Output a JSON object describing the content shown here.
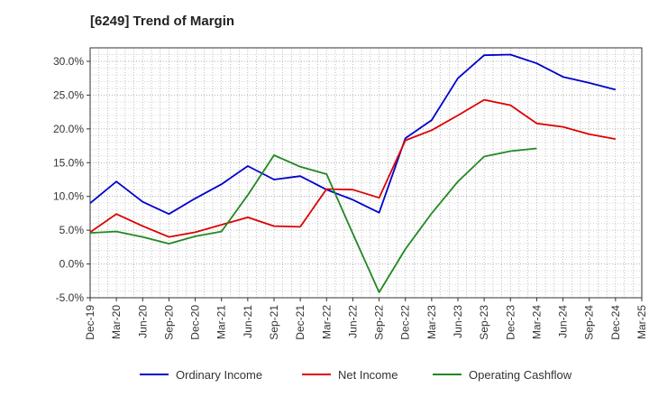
{
  "chart_data": {
    "type": "line",
    "title": "[6249]  Trend of Margin",
    "xlabel": "",
    "ylabel": "",
    "ylim": [
      -5,
      32
    ],
    "y_ticks": [
      "-5.0%",
      "0.0%",
      "5.0%",
      "10.0%",
      "15.0%",
      "20.0%",
      "25.0%",
      "30.0%"
    ],
    "y_tick_values": [
      -5,
      0,
      5,
      10,
      15,
      20,
      25,
      30
    ],
    "categories": [
      "Dec-19",
      "Mar-20",
      "Jun-20",
      "Sep-20",
      "Dec-20",
      "Mar-21",
      "Jun-21",
      "Sep-21",
      "Dec-21",
      "Mar-22",
      "Jun-22",
      "Sep-22",
      "Dec-22",
      "Mar-23",
      "Jun-23",
      "Sep-23",
      "Dec-23",
      "Mar-24",
      "Jun-24",
      "Sep-24",
      "Dec-24",
      "Mar-25"
    ],
    "grid": true,
    "legend_position": "bottom",
    "series": [
      {
        "name": "Ordinary Income",
        "color": "#0000cc",
        "values": [
          9.0,
          12.2,
          9.2,
          7.4,
          9.7,
          11.8,
          14.5,
          12.5,
          13.0,
          11.0,
          9.5,
          7.6,
          18.6,
          21.3,
          27.5,
          30.9,
          31.0,
          29.7,
          27.7,
          26.8,
          25.8,
          null
        ]
      },
      {
        "name": "Net Income",
        "color": "#dd0000",
        "values": [
          4.7,
          7.4,
          5.6,
          4.0,
          4.7,
          5.8,
          6.9,
          5.6,
          5.5,
          11.1,
          11.0,
          9.8,
          18.3,
          19.8,
          22.0,
          24.3,
          23.5,
          20.8,
          20.3,
          19.2,
          18.5,
          null
        ]
      },
      {
        "name": "Operating Cashflow",
        "color": "#228822",
        "values": [
          4.6,
          4.8,
          4.0,
          3.0,
          4.1,
          4.8,
          10.2,
          16.1,
          14.4,
          13.3,
          4.5,
          -4.2,
          2.2,
          7.5,
          12.2,
          15.9,
          16.7,
          17.1,
          null,
          null,
          null,
          null
        ]
      }
    ]
  }
}
